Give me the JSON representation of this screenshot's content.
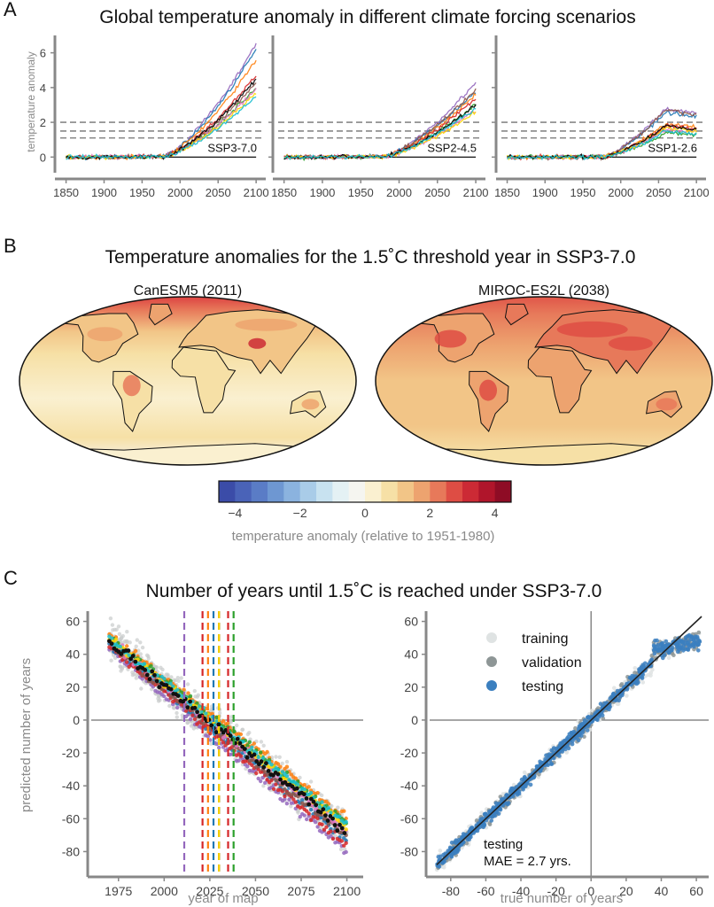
{
  "colors": {
    "models": [
      "#9467bd",
      "#1f77b4",
      "#ff7f0e",
      "#2ca02c",
      "#d62728",
      "#8c564b",
      "#e377c2",
      "#ffd700",
      "#000000",
      "#17becf"
    ],
    "training": "#d9d9d9",
    "validation": "#8e8e8e",
    "testing": "#3b7fbf",
    "zero_line": "#888888",
    "fit_line": "#222222"
  },
  "panel_a": {
    "letter": "A",
    "title": "Global temperature anomaly in different climate forcing scenarios",
    "ylabel": "temperature anomaly",
    "y_ticks": [
      "0",
      "2",
      "4",
      "6"
    ],
    "x_ticks": [
      "1850",
      "1900",
      "1950",
      "2000",
      "2050",
      "2100"
    ]
  },
  "panel_b": {
    "letter": "B",
    "title": "Temperature anomalies for the 1.5˚C threshold year in SSP3-7.0",
    "map_left_title": "CanESM5 (2011)",
    "map_right_title": "MIROC-ES2L (2038)",
    "colorbar_ticks": [
      "−4",
      "−2",
      "0",
      "2",
      "4"
    ],
    "colorbar_label": "temperature anomaly (relative to 1951-1980)",
    "colorbar_colors": [
      "#3b4ca8",
      "#4a63b8",
      "#5a7cc6",
      "#6e97d2",
      "#8bb3df",
      "#a9cce8",
      "#c8e2f0",
      "#e4f1f4",
      "#f5f5f0",
      "#faf0d0",
      "#f6e0a6",
      "#f2c587",
      "#eda36f",
      "#e7795a",
      "#de4d44",
      "#cc2a35",
      "#b0152b",
      "#8e0c25"
    ]
  },
  "panel_c": {
    "letter": "C",
    "title": "Number of years until 1.5˚C is reached under SSP3-7.0",
    "left_xlabel": "year of map",
    "left_ylabel": "predicted number of years",
    "left_x_ticks": [
      "1975",
      "2000",
      "2025",
      "2050",
      "2075",
      "2100"
    ],
    "y_ticks": [
      "60",
      "40",
      "20",
      "0",
      "-20",
      "-40",
      "-60",
      "-80"
    ],
    "right_xlabel": "true number of years",
    "right_x_ticks": [
      "-80",
      "-60",
      "-40",
      "-20",
      "0",
      "20",
      "40",
      "60"
    ],
    "legend": [
      "training",
      "validation",
      "testing"
    ],
    "mae_line1": "testing",
    "mae_line2": "MAE = 2.7 yrs."
  },
  "chart_data": [
    {
      "type": "line",
      "title": "Global temperature anomaly in different climate forcing scenarios",
      "ylabel": "temperature anomaly",
      "xlim": [
        1840,
        2108
      ],
      "ylim": [
        -0.9,
        7.0
      ],
      "threshold_lines": [
        1.1,
        1.5,
        2.0
      ],
      "panels": [
        {
          "scenario": "SSP3-7.0",
          "end_values_2100": [
            6.5,
            6.2,
            5.6,
            4.0,
            4.7,
            4.3,
            3.9,
            3.7,
            4.5,
            3.5
          ],
          "start_rise_year": 1975
        },
        {
          "scenario": "SSP2-4.5",
          "end_values_2100": [
            4.3,
            3.8,
            3.6,
            3.0,
            3.4,
            3.9,
            2.7,
            2.6,
            3.0,
            2.8
          ],
          "start_rise_year": 1975
        },
        {
          "scenario": "SSP1-2.6",
          "end_values_2100": [
            2.8,
            2.6,
            1.9,
            1.4,
            1.8,
            2.7,
            1.6,
            1.7,
            1.8,
            1.5
          ],
          "peak_year": 2060
        }
      ]
    },
    {
      "type": "scatter",
      "title": "Number of years until 1.5˚C is reached under SSP3-7.0",
      "xlabel": "year of map",
      "ylabel": "predicted number of years",
      "xlim": [
        1963,
        2107
      ],
      "ylim": [
        -90,
        63
      ],
      "series_start": [
        {
          "x": 1970,
          "y": 48
        },
        {
          "x": 2100,
          "y": -68
        }
      ],
      "per_model_offsets": [
        -12,
        -5,
        8,
        5,
        -8,
        -3,
        0,
        3,
        0,
        4
      ],
      "threshold_years": [
        2011,
        2021,
        2024,
        2027,
        2030,
        2030,
        2035,
        2038
      ]
    },
    {
      "type": "scatter",
      "xlabel": "true number of years",
      "ylim": [
        -90,
        63
      ],
      "xlim": [
        -90,
        65
      ],
      "series": [
        {
          "name": "training"
        },
        {
          "name": "validation"
        },
        {
          "name": "testing"
        }
      ],
      "fit_line": [
        [
          -88,
          -88
        ],
        [
          63,
          63
        ]
      ],
      "mae": 2.7
    }
  ]
}
